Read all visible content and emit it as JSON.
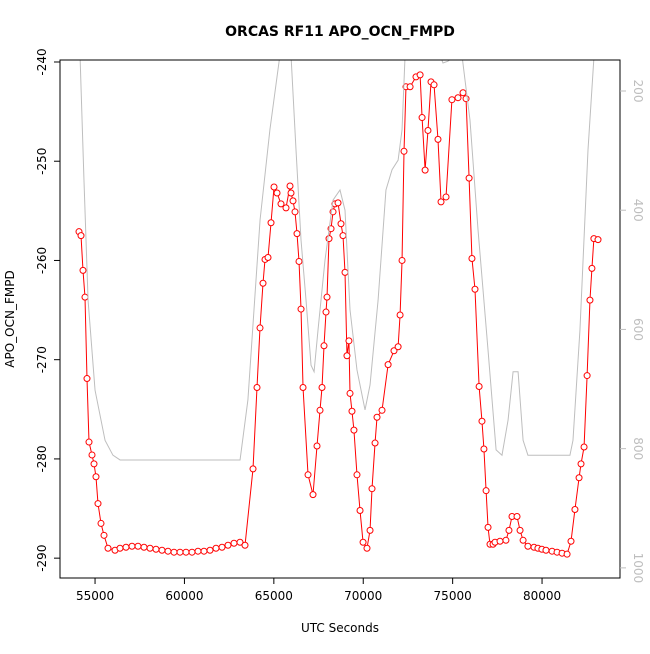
{
  "chart_data": {
    "type": "line",
    "title": "ORCAS RF11 APO_OCN_FMPD",
    "x_label": "UTC Seconds",
    "y_label": "APO_OCN_FMPD",
    "xlim": [
      53040,
      84360
    ],
    "ylim": [
      -292,
      -239.8
    ],
    "y2lim": [
      1017,
      148
    ],
    "xticks": [
      55000,
      60000,
      65000,
      70000,
      75000,
      80000
    ],
    "yticks": [
      -290,
      -280,
      -270,
      -260,
      -250,
      -240
    ],
    "y2ticks": [
      200,
      400,
      600,
      800,
      1000
    ],
    "series": [
      {
        "color": "#ff0000",
        "markers": true,
        "x": [
          54103,
          54215,
          54326,
          54438,
          54550,
          54662,
          54830,
          54942,
          55053,
          55165,
          55333,
          55501,
          55725,
          56116,
          56396,
          56731,
          57067,
          57403,
          57738,
          58074,
          58409,
          58745,
          59080,
          59416,
          59752,
          60087,
          60423,
          60758,
          61094,
          61430,
          61765,
          62101,
          62436,
          62772,
          63107,
          63387,
          63835,
          64058,
          64226,
          64394,
          64506,
          64674,
          64842,
          65010,
          65178,
          65400,
          65680,
          65904,
          65960,
          66072,
          66184,
          66296,
          66408,
          66520,
          66632,
          66912,
          67190,
          67414,
          67582,
          67694,
          67806,
          67918,
          67974,
          68086,
          68198,
          68310,
          68420,
          68590,
          68756,
          68868,
          68980,
          69090,
          69200,
          69260,
          69370,
          69480,
          69650,
          69820,
          69990,
          70210,
          70380,
          70490,
          70660,
          70770,
          71050,
          71390,
          71720,
          71950,
          72060,
          72170,
          72280,
          72390,
          72620,
          72950,
          73180,
          73290,
          73460,
          73620,
          73790,
          73960,
          74180,
          74350,
          74630,
          74960,
          75300,
          75580,
          75750,
          75920,
          76080,
          76250,
          76480,
          76640,
          76750,
          76870,
          76980,
          77090,
          77260,
          77370,
          77650,
          77980,
          78150,
          78320,
          78600,
          78770,
          78940,
          79210,
          79550,
          79770,
          79990,
          80220,
          80560,
          80840,
          81120,
          81400,
          81620,
          81840,
          82070,
          82180,
          82350,
          82520,
          82680,
          82790,
          82900,
          83130
        ],
        "values": [
          -257.1,
          -257.5,
          -261.0,
          -263.7,
          -271.9,
          -278.3,
          -279.6,
          -280.5,
          -281.8,
          -284.5,
          -286.5,
          -287.7,
          -289.0,
          -289.2,
          -289.0,
          -288.9,
          -288.8,
          -288.8,
          -288.9,
          -289.0,
          -289.1,
          -289.2,
          -289.3,
          -289.4,
          -289.4,
          -289.4,
          -289.4,
          -289.3,
          -289.3,
          -289.2,
          -289.0,
          -288.9,
          -288.7,
          -288.5,
          -288.4,
          -288.7,
          -281.0,
          -272.8,
          -266.8,
          -262.3,
          -259.9,
          -259.7,
          -256.2,
          -252.6,
          -253.2,
          -254.3,
          -254.7,
          -252.5,
          -253.2,
          -254.0,
          -255.1,
          -257.3,
          -260.1,
          -264.9,
          -272.8,
          -281.6,
          -283.6,
          -278.7,
          -275.1,
          -272.8,
          -268.6,
          -265.2,
          -263.7,
          -257.8,
          -256.8,
          -255.1,
          -254.3,
          -254.2,
          -256.3,
          -257.5,
          -261.2,
          -269.6,
          -268.1,
          -273.4,
          -275.2,
          -277.1,
          -281.6,
          -285.2,
          -288.4,
          -289.0,
          -287.2,
          -283.0,
          -278.4,
          -275.8,
          -275.1,
          -270.5,
          -269.1,
          -268.7,
          -265.5,
          -260.0,
          -249.0,
          -242.5,
          -242.5,
          -241.5,
          -241.3,
          -245.6,
          -250.9,
          -246.9,
          -242.0,
          -242.3,
          -247.8,
          -254.1,
          -253.6,
          -243.8,
          -243.6,
          -243.1,
          -243.7,
          -251.7,
          -259.8,
          -262.9,
          -272.7,
          -276.2,
          -279.0,
          -283.2,
          -286.9,
          -288.6,
          -288.6,
          -288.4,
          -288.3,
          -288.2,
          -287.2,
          -285.8,
          -285.8,
          -287.2,
          -288.2,
          -288.8,
          -288.9,
          -289.0,
          -289.1,
          -289.2,
          -289.3,
          -289.4,
          -289.5,
          -289.6,
          -288.3,
          -285.1,
          -281.9,
          -280.5,
          -278.8,
          -271.6,
          -264.0,
          -260.8,
          -257.8,
          -257.9
        ]
      },
      {
        "color": "#bebebe",
        "axis": "y2",
        "markers": false,
        "x": [
          54160,
          54380,
          54610,
          55000,
          55560,
          56000,
          56400,
          63110,
          63550,
          63890,
          64230,
          64780,
          65340,
          65960,
          66240,
          66520,
          66800,
          67080,
          67250,
          67470,
          67860,
          68310,
          68700,
          68980,
          69260,
          69650,
          70100,
          70380,
          70830,
          71270,
          71610,
          71950,
          72170,
          72340,
          74290,
          74460,
          74740,
          75130,
          75520,
          75970,
          76420,
          76980,
          77430,
          77760,
          78100,
          78380,
          78660,
          78940,
          79210,
          81560,
          81730,
          82120,
          82570,
          82910
        ],
        "values": [
          140,
          349,
          551,
          702,
          786,
          811,
          819,
          819,
          718,
          567,
          416,
          265,
          140,
          140,
          299,
          450,
          551,
          660,
          671,
          601,
          484,
          383,
          366,
          400,
          567,
          668,
          735,
          693,
          551,
          366,
          332,
          316,
          265,
          140,
          140,
          153,
          150,
          140,
          140,
          249,
          433,
          635,
          802,
          811,
          752,
          671,
          671,
          786,
          811,
          811,
          786,
          601,
          299,
          140
        ]
      }
    ]
  }
}
